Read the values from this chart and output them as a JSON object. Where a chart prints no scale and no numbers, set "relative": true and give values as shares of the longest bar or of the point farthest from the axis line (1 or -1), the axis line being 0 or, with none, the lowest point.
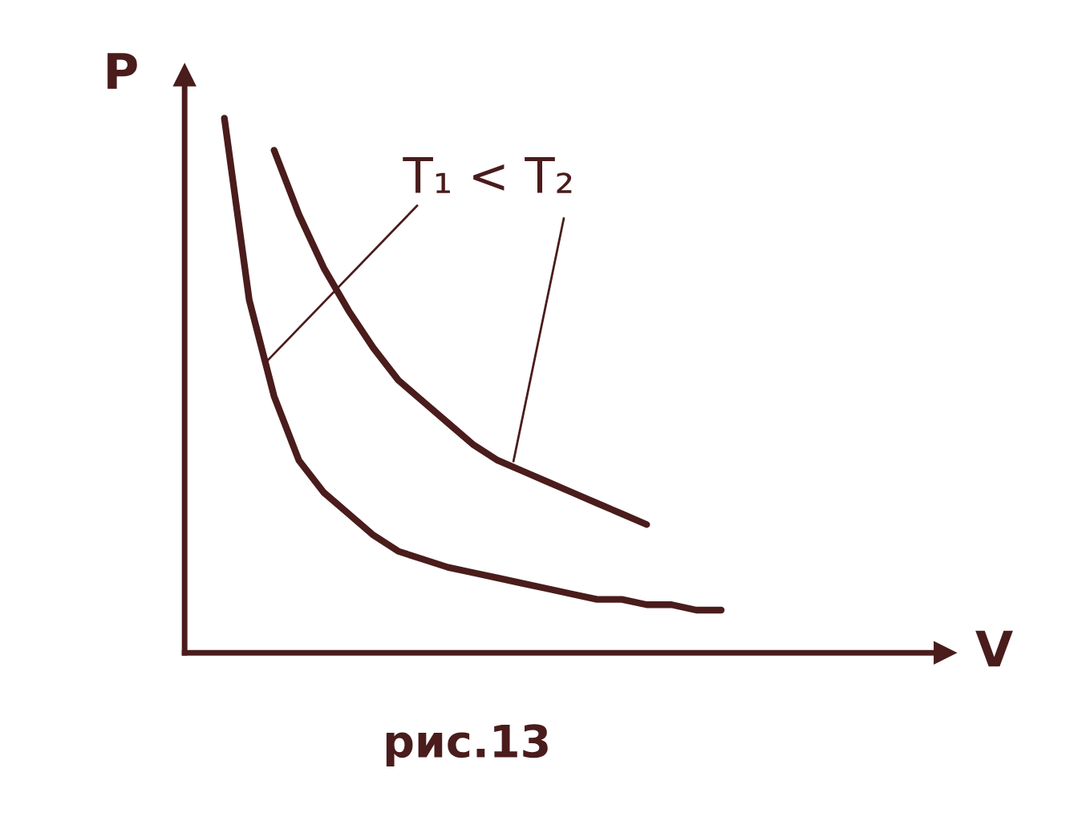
{
  "chart_data": {
    "type": "line",
    "relative": true,
    "xlabel": "V",
    "ylabel": "P",
    "categories": [
      null,
      null,
      null,
      null,
      null,
      null,
      null,
      null,
      null,
      null,
      null,
      null,
      null,
      null,
      null,
      null,
      null,
      null,
      null,
      null,
      null
    ],
    "series": [
      {
        "color": "#4a1c1c",
        "values": [
          1.0,
          0.66,
          0.48,
          0.36,
          0.3,
          0.26,
          0.22,
          0.19,
          0.175,
          0.16,
          0.15,
          0.14,
          0.13,
          0.12,
          0.11,
          0.1,
          0.1,
          0.09,
          0.09,
          0.08,
          0.08
        ]
      },
      {
        "color": "#4a1c1c",
        "values": [
          null,
          null,
          0.94,
          0.82,
          0.72,
          0.64,
          0.57,
          0.51,
          0.47,
          0.43,
          0.39,
          0.36,
          0.34,
          0.32,
          0.3,
          0.28,
          0.26,
          0.24,
          null,
          null,
          null
        ]
      }
    ],
    "annotations": [
      "T₁ < T₂",
      "рис.13"
    ]
  }
}
